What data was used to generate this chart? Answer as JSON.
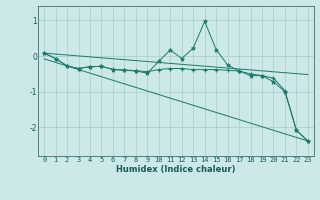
{
  "background_color": "#cce8e8",
  "grid_color": "#aacccc",
  "line_color": "#1a7a6a",
  "xlabel": "Humidex (Indice chaleur)",
  "yticks": [
    -2,
    -1,
    0,
    1
  ],
  "ylim": [
    -2.8,
    1.4
  ],
  "xlim": [
    -0.5,
    23.5
  ],
  "line1_x": [
    0,
    1,
    2,
    3,
    4,
    5,
    6,
    7,
    8,
    9,
    10,
    11,
    12,
    13,
    14,
    15,
    16,
    17,
    18,
    19,
    20,
    21,
    22,
    23
  ],
  "line1_y": [
    0.08,
    -0.07,
    -0.28,
    -0.35,
    -0.3,
    -0.29,
    -0.38,
    -0.4,
    -0.42,
    -0.48,
    -0.15,
    0.17,
    -0.07,
    0.22,
    0.97,
    0.18,
    -0.25,
    -0.42,
    -0.55,
    -0.55,
    -0.72,
    -1.0,
    -2.08,
    -2.38
  ],
  "line2_x": [
    0,
    1,
    2,
    3,
    4,
    5,
    6,
    7,
    8,
    9,
    10,
    11,
    12,
    13,
    14,
    15,
    16,
    17,
    18,
    19,
    20,
    21,
    22,
    23
  ],
  "line2_y": [
    0.08,
    -0.07,
    -0.28,
    -0.35,
    -0.3,
    -0.29,
    -0.37,
    -0.39,
    -0.41,
    -0.44,
    -0.38,
    -0.35,
    -0.35,
    -0.38,
    -0.38,
    -0.38,
    -0.4,
    -0.42,
    -0.5,
    -0.55,
    -0.62,
    -0.97,
    -2.08,
    -2.38
  ],
  "line3_x": [
    0,
    23
  ],
  "line3_y": [
    0.08,
    -0.52
  ],
  "line4_x": [
    0,
    23
  ],
  "line4_y": [
    -0.08,
    -2.38
  ],
  "xlabel_fontsize": 6,
  "tick_fontsize": 5,
  "ytick_fontsize": 5.5,
  "font_color": "#1a5a5a"
}
